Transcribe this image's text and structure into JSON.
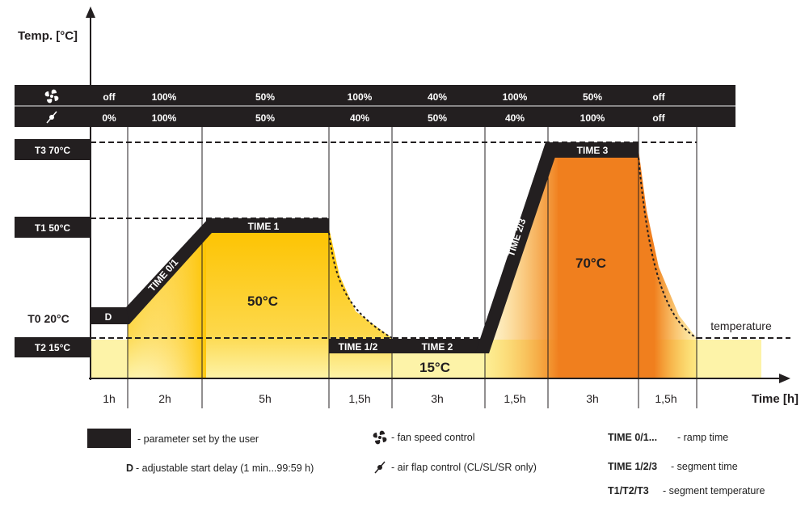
{
  "axes": {
    "y_label": "Temp. [°C]",
    "x_label": "Time [h]"
  },
  "fan_row": {
    "icon": "fan-icon",
    "values": [
      "off",
      "100%",
      "50%",
      "100%",
      "40%",
      "100%",
      "50%",
      "off"
    ]
  },
  "flap_row": {
    "icon": "air-flap-icon",
    "values": [
      "0%",
      "100%",
      "50%",
      "40%",
      "50%",
      "40%",
      "100%",
      "off"
    ]
  },
  "temperatures": {
    "t3": "T3 70°C",
    "t1": "T1 50°C",
    "t0": "T0 20°C",
    "t2": "T2 15°C"
  },
  "segments": {
    "d": "D",
    "time01": "TIME 0/1",
    "time1": "TIME 1",
    "time12": "TIME 1/2",
    "time2": "TIME 2",
    "time23": "TIME 2/3",
    "time3": "TIME 3"
  },
  "area_labels": {
    "a50": "50°C",
    "a15": "15°C",
    "a70": "70°C",
    "temperature": "temperature"
  },
  "durations": [
    "1h",
    "2h",
    "5h",
    "1,5h",
    "3h",
    "1,5h",
    "3h",
    "1,5h"
  ],
  "legend": {
    "user_param": "- parameter set by the user",
    "d_key": "D",
    "d_desc": "- adjustable start delay (1 min...99:59 h)",
    "fan": "- fan speed control",
    "flap": "- air flap control (CL/SL/SR only)",
    "ramp_key": "TIME 0/1...",
    "ramp_desc": "- ramp time",
    "seg_key": "TIME 1/2/3",
    "seg_desc": "- segment time",
    "temp_key": "T1/T2/T3",
    "temp_desc": "- segment temperature"
  },
  "colors": {
    "dark": "#231f20",
    "yellow": "#fdc300",
    "orange": "#f07f1e",
    "light_yellow": "#fdf3a8"
  }
}
